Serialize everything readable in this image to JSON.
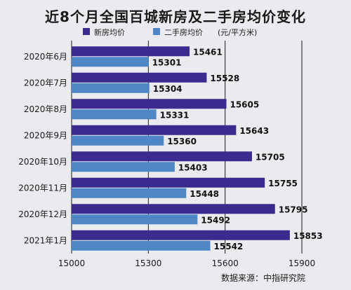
{
  "chart_data": {
    "type": "bar",
    "orientation": "horizontal",
    "title": "近8个月全国百城新房及二手房均价变化",
    "unit": "(元/平方米)",
    "categories": [
      "2020年6月",
      "2020年7月",
      "2020年8月",
      "2020年9月",
      "2020年10月",
      "2020年11月",
      "2020年12月",
      "2021年1月"
    ],
    "series": [
      {
        "name": "新房均价",
        "color": "#3b2b8f",
        "values": [
          15461,
          15528,
          15605,
          15643,
          15705,
          15755,
          15795,
          15853
        ]
      },
      {
        "name": "二手房均价",
        "color": "#4f86c6",
        "values": [
          15301,
          15304,
          15331,
          15360,
          15403,
          15448,
          15492,
          15542
        ]
      }
    ],
    "xlim": [
      15000,
      15900
    ],
    "xticks": [
      "15000",
      "15300",
      "15600",
      "15900"
    ],
    "grid": true,
    "legend_placement": "top",
    "source": "数据来源：中指研究院"
  }
}
